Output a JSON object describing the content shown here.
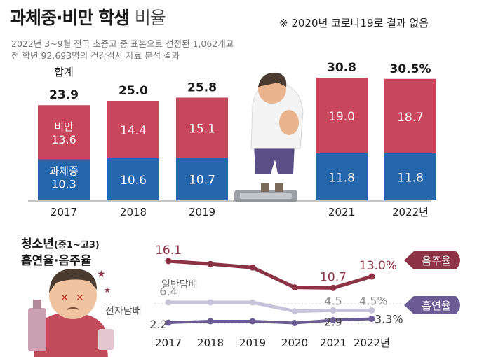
{
  "header": {
    "title_bold": "과체중·비만 학생",
    "title_light": "비율",
    "note": "※ 2020년 코로나19로 결과 없음",
    "subtitle_line1": "2022년 3~9월 전국 초중고 중 표본으로 선정된 1,062개교",
    "subtitle_line2": "전 학년 92,693명의 건강검사 자료 분석 결과"
  },
  "section2": {
    "title_line1": "청소년",
    "title_paren": "(중1~고3)",
    "title_line2": "흡연율·음주율"
  },
  "colors": {
    "obese": "#c8475c",
    "overweight": "#2566ad",
    "drinking": "#8c3346",
    "smoking_general": "#c6c3da",
    "smoking_electronic": "#6b5b95"
  },
  "chart_data": [
    {
      "type": "bar",
      "stacked": true,
      "categories": [
        "2017",
        "2018",
        "2019",
        "2021",
        "2022년"
      ],
      "series": [
        {
          "name": "과체중",
          "values": [
            10.3,
            10.6,
            10.7,
            11.8,
            11.8
          ]
        },
        {
          "name": "비만",
          "values": [
            13.6,
            14.4,
            15.1,
            19.0,
            18.7
          ]
        }
      ],
      "totals": [
        "23.9",
        "25.0",
        "25.8",
        "30.8",
        "30.5%"
      ],
      "total_label": "합계",
      "ylim": [
        0,
        32
      ]
    },
    {
      "type": "line",
      "x": [
        "2017",
        "2018",
        "2019",
        "2020",
        "2021",
        "2022년"
      ],
      "series": [
        {
          "name": "음주율",
          "values": [
            16.1,
            15.5,
            14.8,
            10.8,
            10.7,
            13.0
          ]
        },
        {
          "name": "일반담배",
          "values": [
            6.4,
            6.4,
            6.4,
            4.3,
            4.5,
            4.5
          ]
        },
        {
          "name": "전자담배",
          "values": [
            2.2,
            2.6,
            2.6,
            2.1,
            2.9,
            3.3
          ]
        }
      ],
      "point_labels": [
        {
          "series": "음주율",
          "index": 0,
          "text": "16.1"
        },
        {
          "series": "음주율",
          "index": 4,
          "text": "10.7"
        },
        {
          "series": "음주율",
          "index": 5,
          "text": "13.0%"
        },
        {
          "series": "일반담배",
          "index": 0,
          "text": "6.4"
        },
        {
          "series": "일반담배",
          "index": 4,
          "text": "4.5"
        },
        {
          "series": "일반담배",
          "index": 5,
          "text": "4.5%"
        },
        {
          "series": "전자담배",
          "index": 0,
          "text": "2.2"
        },
        {
          "series": "전자담배",
          "index": 4,
          "text": "2.9"
        },
        {
          "series": "전자담배",
          "index": 5,
          "text": "3.3%"
        }
      ],
      "tags": [
        "음주율",
        "흡연율"
      ]
    }
  ]
}
